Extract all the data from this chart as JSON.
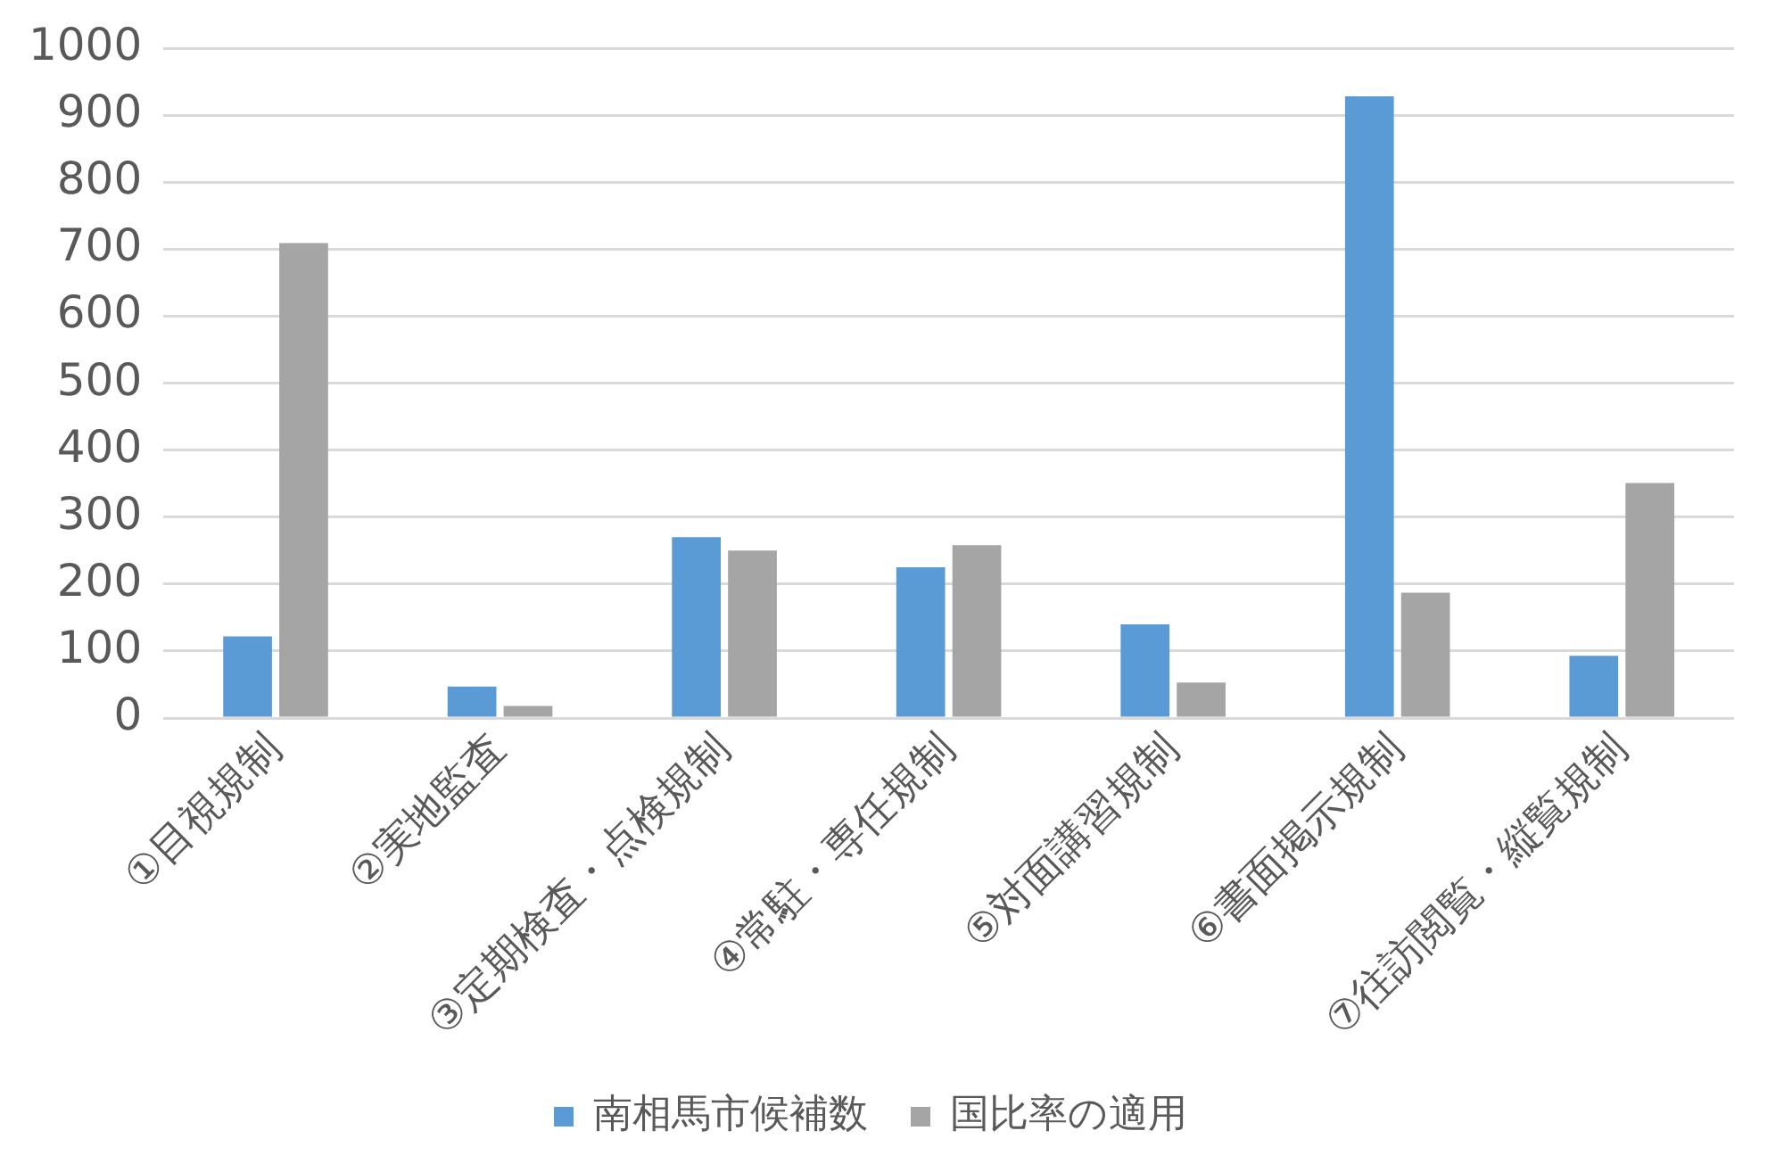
{
  "chart_data": {
    "type": "bar",
    "categories": [
      "①目視規制",
      "②実地監査",
      "③定期検査・点検規制",
      "④常駐・専任規制",
      "⑤対面講習規制",
      "⑥書面掲示規制",
      "⑦往訪閲覧・縦覧規制"
    ],
    "series": [
      {
        "name": "南相馬市候補数",
        "color": "#5b9bd5",
        "values": [
          122,
          47,
          270,
          225,
          140,
          928,
          93
        ]
      },
      {
        "name": "国比率の適用",
        "color": "#a5a5a5",
        "values": [
          709,
          18,
          250,
          258,
          53,
          187,
          351
        ]
      }
    ],
    "ylim": [
      0,
      1000
    ],
    "yticks": [
      0,
      100,
      200,
      300,
      400,
      500,
      600,
      700,
      800,
      900,
      1000
    ],
    "grid": "y",
    "legend": "bottom"
  }
}
